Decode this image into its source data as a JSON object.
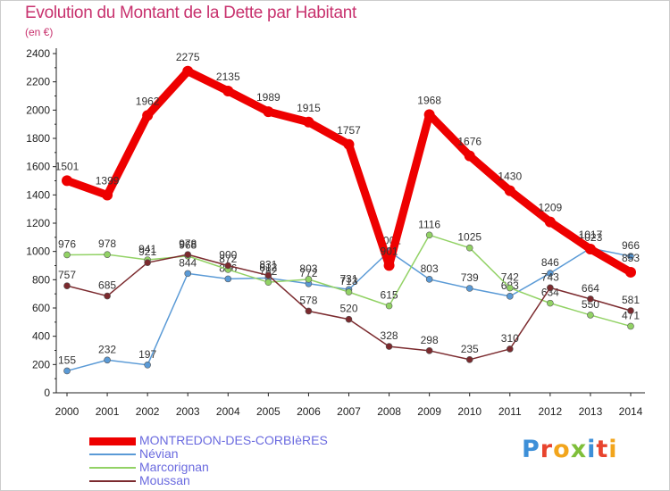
{
  "header": {
    "title": "Evolution du Montant de la Dette par Habitant",
    "subtitle": "(en €)"
  },
  "logo": {
    "text": "Proxiti",
    "colors": [
      "#3d8fd8",
      "#e8442e",
      "#f2a51c",
      "#7fbf3a",
      "#3d8fd8",
      "#e8442e",
      "#f2a51c"
    ]
  },
  "chart_data": {
    "type": "line",
    "title": "Evolution du Montant de la Dette par Habitant",
    "subtitle": "(en €)",
    "x": [
      "2000",
      "2001",
      "2002",
      "2003",
      "2004",
      "2005",
      "2006",
      "2007",
      "2008",
      "2009",
      "2010",
      "2011",
      "2012",
      "2013",
      "2014"
    ],
    "ylim": [
      0,
      2400
    ],
    "yticks": [
      0,
      200,
      400,
      600,
      800,
      1000,
      1200,
      1400,
      1600,
      1800,
      2000,
      2200,
      2400
    ],
    "grid": false,
    "legend": "bottom-left",
    "series": [
      {
        "name": "Névian",
        "color": "#5a9ad6",
        "values": [
          155,
          232,
          197,
          844,
          806,
          812,
          772,
          731,
          1001,
          803,
          739,
          683,
          846,
          1023,
          966
        ],
        "labels": [
          "155",
          "232",
          "197",
          "844",
          "806",
          "812",
          "772",
          "731",
          "1001",
          "803",
          "739",
          "683",
          "846",
          "1023",
          "966"
        ]
      },
      {
        "name": "Marcorignan",
        "color": "#92d265",
        "values": [
          976,
          978,
          941,
          968,
          872,
          782,
          803,
          713,
          615,
          1116,
          1025,
          742,
          634,
          550,
          471
        ],
        "labels": [
          "976",
          "978",
          "941",
          "968",
          "872",
          "782",
          "803",
          "713",
          "615",
          "1116",
          "1025",
          "742",
          "634",
          "550",
          "471"
        ]
      },
      {
        "name": "Moussan",
        "color": "#7b2a2e",
        "values": [
          757,
          685,
          921,
          978,
          900,
          831,
          578,
          520,
          328,
          298,
          235,
          310,
          743,
          664,
          581
        ],
        "labels": [
          "757",
          "685",
          "921",
          "978",
          "900",
          "831",
          "578",
          "520",
          "328",
          "298",
          "235",
          "310",
          "743",
          "664",
          "581"
        ]
      },
      {
        "name": "MONTREDON-DES-CORBIèRES",
        "color": "#ee0000",
        "values": [
          1501,
          1399,
          1962,
          2275,
          2135,
          1989,
          1915,
          1757,
          901,
          1968,
          1676,
          1430,
          1209,
          1017,
          853
        ],
        "labels": [
          "1501",
          "1399",
          "1962",
          "2275",
          "2135",
          "1989",
          "1915",
          "1757",
          "901",
          "1968",
          "1676",
          "1430",
          "1209",
          "1017",
          "853"
        ]
      }
    ],
    "legend_entries": [
      {
        "name": "MONTREDON-DES-CORBIèRES",
        "color": "#ee0000"
      },
      {
        "name": "Névian",
        "color": "#5a9ad6"
      },
      {
        "name": "Marcorignan",
        "color": "#92d265"
      },
      {
        "name": "Moussan",
        "color": "#7b2a2e"
      }
    ]
  }
}
